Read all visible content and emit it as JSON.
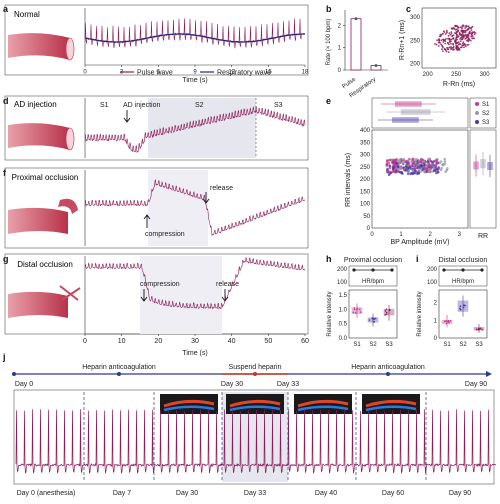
{
  "panels": {
    "a": {
      "letter": "a",
      "label": "Normal",
      "xlabel": "Time (s)",
      "xticks": [
        "0",
        "3",
        "6",
        "9",
        "12",
        "15",
        "18"
      ],
      "legend": [
        {
          "name": "Pulse wave",
          "color": "#8b1e5a"
        },
        {
          "name": "Respiratory wave",
          "color": "#1f2a7a"
        }
      ]
    },
    "b": {
      "letter": "b",
      "ylabel": "Rate (× 100 bpm)",
      "yticks": [
        "0",
        "1",
        "2"
      ],
      "categories": [
        "Pulse",
        "Respiratory"
      ]
    },
    "c": {
      "letter": "c",
      "xlabel": "R-Rn (ms)",
      "ylabel": "R-Rn+1 (ms)",
      "xticks": [
        "200",
        "250",
        "300"
      ],
      "yticks": [
        "200",
        "250",
        "300"
      ]
    },
    "d": {
      "letter": "d",
      "label": "AD injection",
      "segments": [
        "S1",
        "S2",
        "S3"
      ],
      "annotation": "AD injection"
    },
    "e": {
      "letter": "e",
      "xlabel": "BP Amplitude (mV)",
      "ylabel": "RR intervals (ms)",
      "xticks": [
        "0",
        "1",
        "2",
        "3"
      ],
      "yticks": [
        "0",
        "50",
        "100",
        "150",
        "200",
        "250",
        "300",
        "350",
        "400"
      ],
      "legend": [
        "S1",
        "S2",
        "S3"
      ],
      "side_label": "RR"
    },
    "f": {
      "letter": "f",
      "label": "Proximal occlusion",
      "annotations": [
        "compression",
        "release"
      ]
    },
    "g": {
      "letter": "g",
      "label": "Distal occlusion",
      "annotations": [
        "compression",
        "release"
      ],
      "xlabel": "Time (s)",
      "xticks": [
        "0",
        "10",
        "20",
        "30",
        "40",
        "50",
        "60"
      ]
    },
    "h": {
      "letter": "h",
      "title": "Proximal occlusion",
      "hr_label": "HR/bpm",
      "hr_ticks": [
        "200",
        "100"
      ],
      "ylabel": "Relative intensity",
      "yticks": [
        "0.0",
        "0.5",
        "1.0",
        "1.5"
      ],
      "categories": [
        "S1",
        "S2",
        "S3"
      ]
    },
    "i": {
      "letter": "i",
      "title": "Distal occlusion",
      "hr_label": "HR/bpm",
      "hr_ticks": [
        "200",
        "100"
      ],
      "ylabel": "Relative intensity",
      "yticks": [
        "0",
        "1",
        "2"
      ],
      "categories": [
        "S1",
        "S2",
        "S3"
      ]
    },
    "j": {
      "letter": "j",
      "timeline": [
        "Day 0",
        "Heparin anticoagulation",
        "Suspend heparin",
        "Day 30",
        "Day 33",
        "Heparin anticoagulation",
        "Day 90"
      ],
      "days": [
        "Day 0 (anesthesia)",
        "Day 7",
        "Day 30",
        "Day 33",
        "Day 40",
        "Day 60",
        "Day 90"
      ]
    }
  },
  "colors": {
    "pulse": "#8b1e5a",
    "resp": "#1f2a7a",
    "s1": "#c03a8a",
    "s2": "#4a3aa8",
    "s3": "#8b1e5a",
    "shade": "#e8e8f0"
  },
  "chart_data": [
    {
      "type": "bar",
      "panel": "b",
      "categories": [
        "Pulse",
        "Respiratory"
      ],
      "values": [
        2.3,
        0.2
      ],
      "ylim": [
        0,
        2.6
      ],
      "ylabel": "Rate (× 100 bpm)"
    },
    {
      "type": "scatter",
      "panel": "c",
      "xlabel": "R-Rn (ms)",
      "ylabel": "R-Rn+1 (ms)",
      "xlim": [
        190,
        320
      ],
      "ylim": [
        190,
        320
      ]
    },
    {
      "type": "scatter",
      "panel": "e",
      "xlabel": "BP Amplitude (mV)",
      "ylabel": "RR intervals (ms)",
      "xlim": [
        0,
        3.3
      ],
      "ylim": [
        0,
        400
      ],
      "series": [
        {
          "name": "S1"
        },
        {
          "name": "S2"
        },
        {
          "name": "S3"
        }
      ]
    },
    {
      "type": "line",
      "panel": "a",
      "xlabel": "Time (s)",
      "xlim": [
        0,
        18
      ],
      "series": [
        {
          "name": "Pulse wave"
        },
        {
          "name": "Respiratory wave"
        }
      ]
    },
    {
      "type": "line",
      "panel": "g",
      "xlabel": "Time (s)",
      "xlim": [
        0,
        60
      ]
    }
  ]
}
